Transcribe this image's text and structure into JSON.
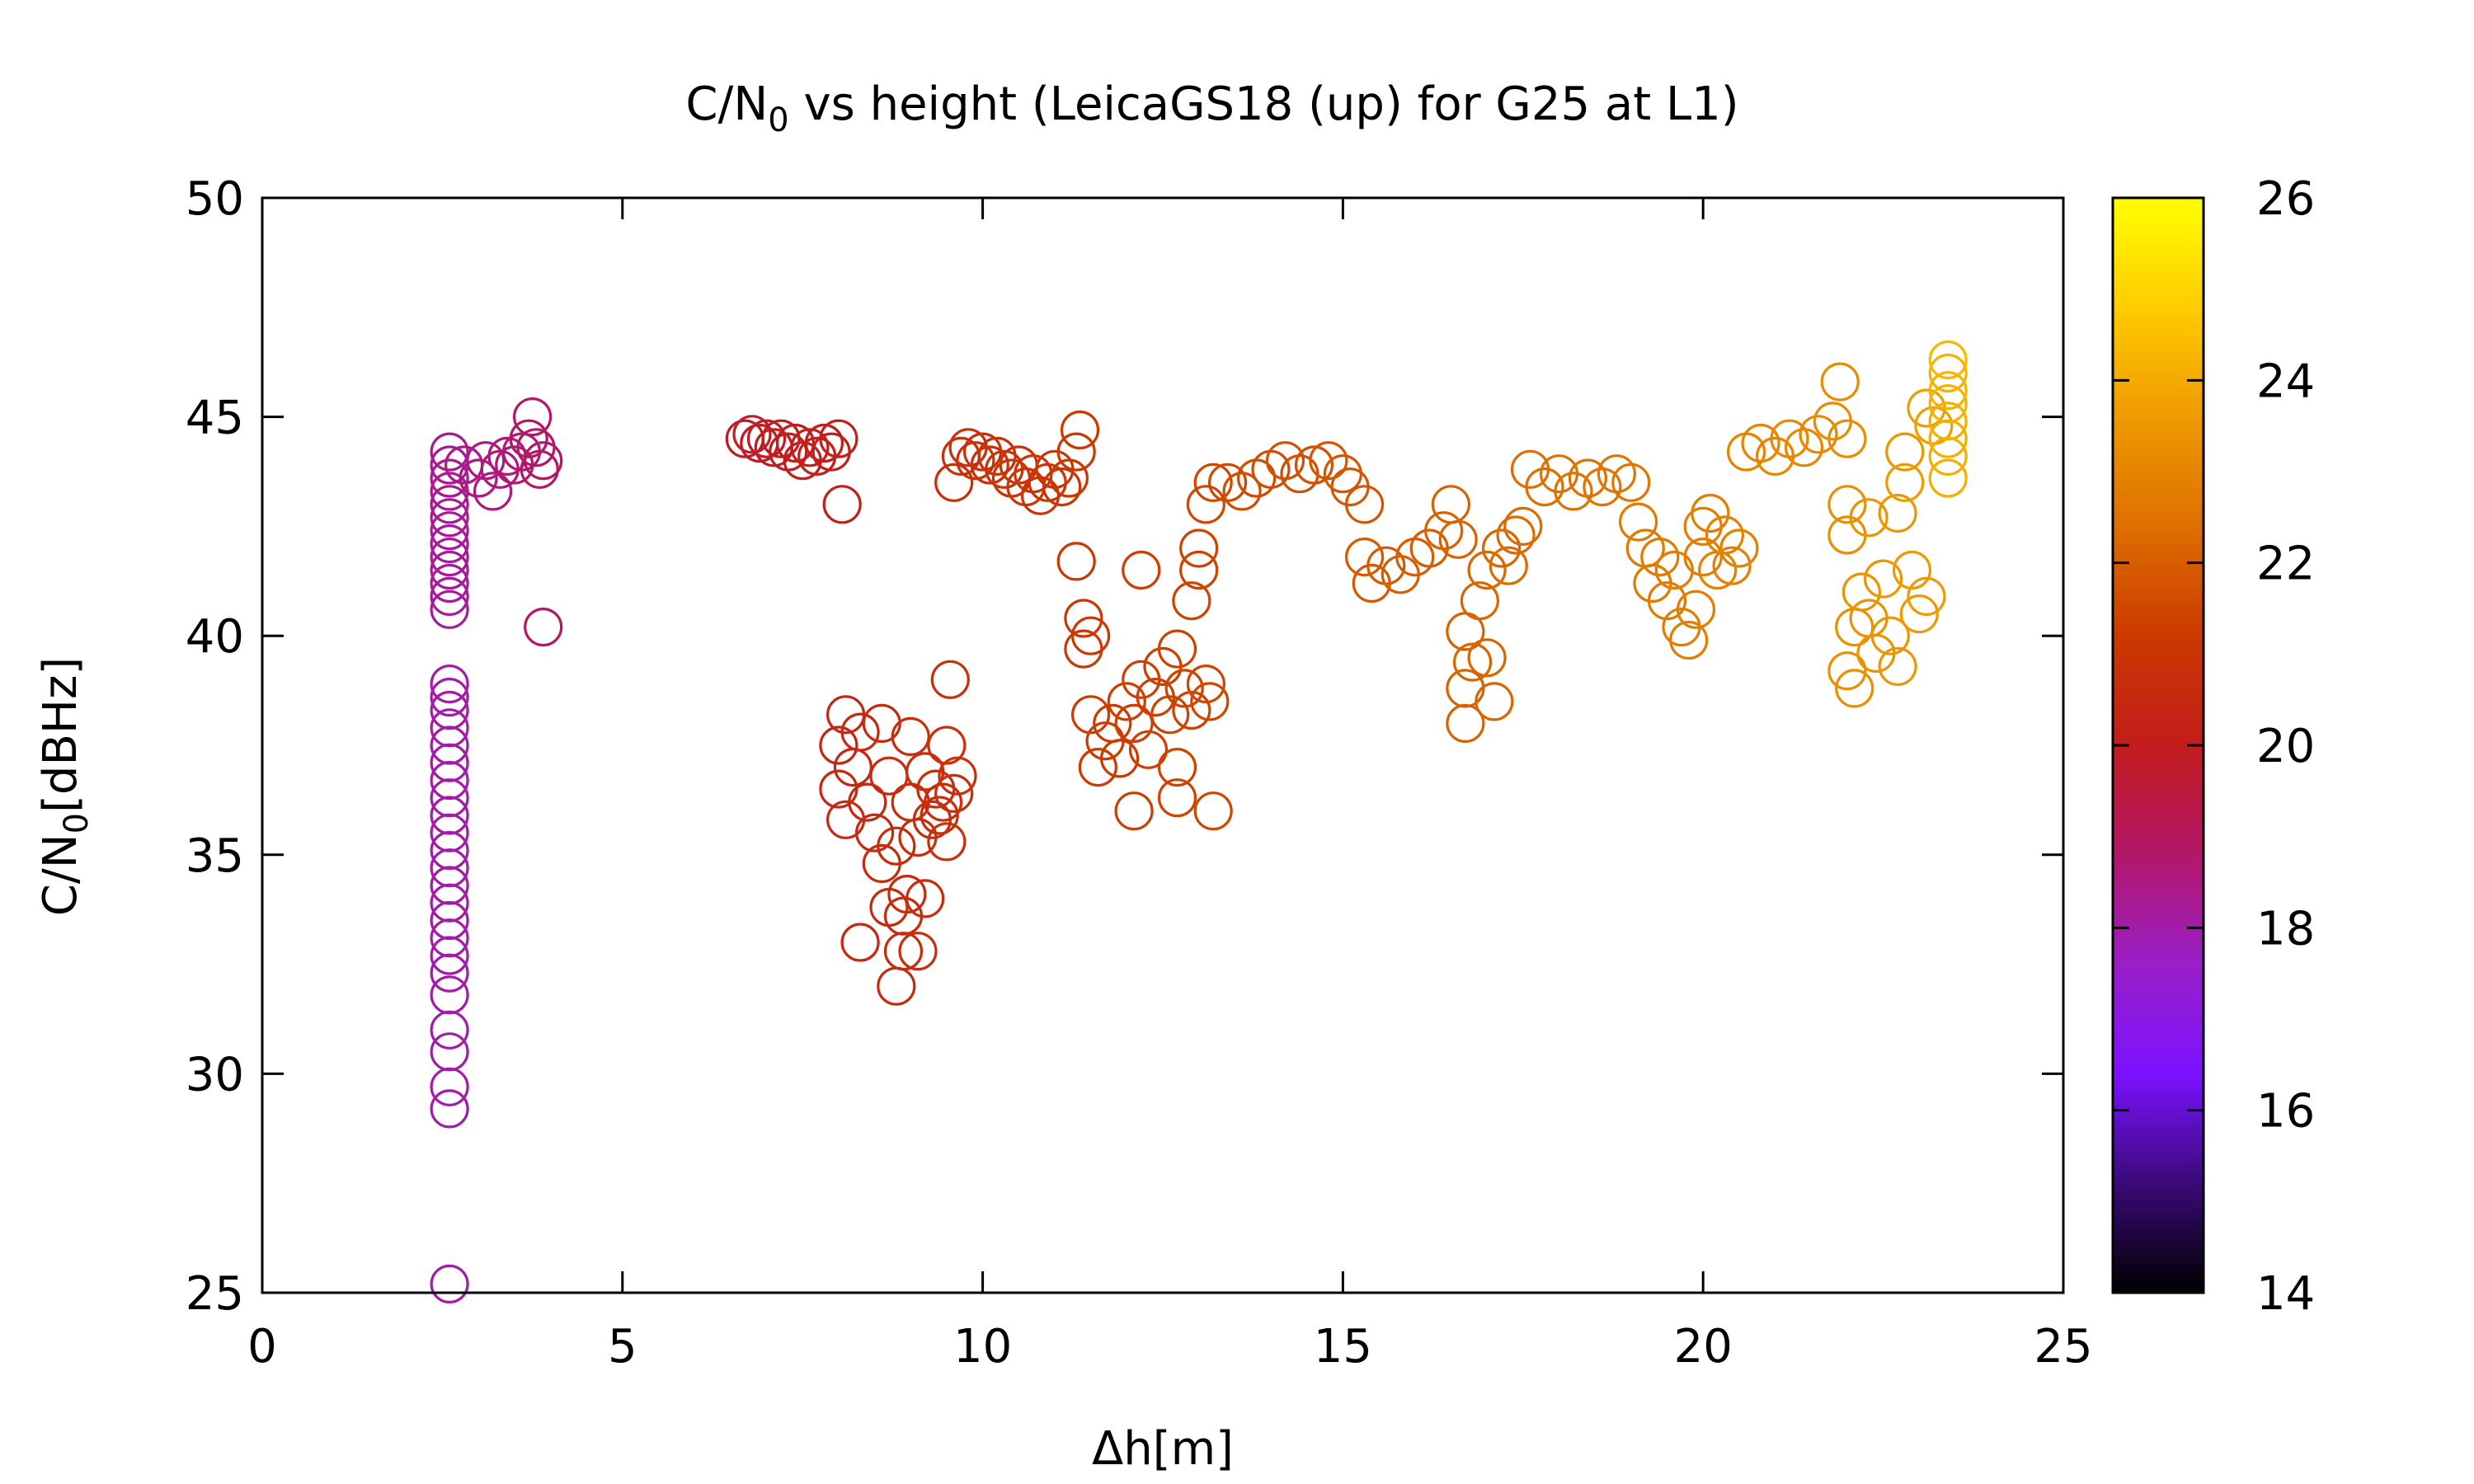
{
  "chart_data": {
    "type": "scatter",
    "title": "C/N₀ vs height (LeicaGS18 (up) for G25 at L1)",
    "title_parts": {
      "prefix": "C/N",
      "sub": "0",
      "suffix": " vs height (LeicaGS18 (up) for G25 at L1)"
    },
    "xlabel": "Δh[m]",
    "ylabel": "C/N₀[dBHz]",
    "ylabel_parts": {
      "prefix": "C/N",
      "sub": "0",
      "suffix": "[dBHz]"
    },
    "xlim": [
      0,
      25
    ],
    "ylim": [
      25,
      50
    ],
    "x_ticks": [
      0,
      5,
      10,
      15,
      20,
      25
    ],
    "y_ticks": [
      25,
      30,
      35,
      40,
      45,
      50
    ],
    "marker": "open-circle",
    "grid": false,
    "legend": "none",
    "colorbar": {
      "range": [
        14,
        26
      ],
      "ticks": [
        14,
        16,
        18,
        20,
        22,
        24,
        26
      ],
      "colormap": [
        "#000000",
        "#3a0a78",
        "#7b12ff",
        "#9a1fc8",
        "#b3176a",
        "#c21c1c",
        "#cc3a00",
        "#dd6f00",
        "#ee9a00",
        "#ffcc00",
        "#ffff00"
      ],
      "placement": "right"
    },
    "points": [
      [
        2.6,
        25.2,
        18
      ],
      [
        2.6,
        29.2,
        18
      ],
      [
        2.6,
        29.7,
        18
      ],
      [
        2.6,
        30.5,
        18
      ],
      [
        2.6,
        31.0,
        18
      ],
      [
        2.6,
        31.8,
        18
      ],
      [
        2.6,
        32.3,
        18
      ],
      [
        2.6,
        32.7,
        18
      ],
      [
        2.6,
        33.1,
        18
      ],
      [
        2.6,
        33.5,
        18
      ],
      [
        2.6,
        33.9,
        18
      ],
      [
        2.6,
        34.3,
        18
      ],
      [
        2.6,
        34.7,
        18
      ],
      [
        2.6,
        35.1,
        18
      ],
      [
        2.6,
        35.5,
        18
      ],
      [
        2.6,
        35.9,
        18
      ],
      [
        2.6,
        36.3,
        18
      ],
      [
        2.6,
        36.7,
        18
      ],
      [
        2.6,
        37.1,
        18
      ],
      [
        2.6,
        37.5,
        18
      ],
      [
        2.6,
        37.9,
        18
      ],
      [
        2.6,
        38.3,
        18
      ],
      [
        2.6,
        38.6,
        18
      ],
      [
        2.6,
        38.9,
        18
      ],
      [
        2.6,
        40.6,
        18.2
      ],
      [
        2.6,
        40.9,
        18.2
      ],
      [
        2.6,
        41.2,
        18.2
      ],
      [
        2.6,
        41.5,
        18.2
      ],
      [
        2.6,
        41.8,
        18.2
      ],
      [
        2.6,
        42.1,
        18.2
      ],
      [
        2.6,
        42.4,
        18.2
      ],
      [
        2.6,
        42.7,
        18.3
      ],
      [
        2.6,
        43.0,
        18.3
      ],
      [
        2.6,
        43.3,
        18.3
      ],
      [
        2.6,
        43.6,
        18.3
      ],
      [
        2.6,
        43.9,
        18.3
      ],
      [
        2.6,
        44.2,
        18.3
      ],
      [
        2.8,
        43.9,
        18.4
      ],
      [
        3.0,
        43.6,
        18.5
      ],
      [
        3.1,
        44.0,
        18.5
      ],
      [
        3.2,
        43.3,
        18.5
      ],
      [
        3.3,
        43.8,
        18.6
      ],
      [
        3.4,
        44.1,
        18.6
      ],
      [
        3.5,
        43.9,
        18.7
      ],
      [
        3.6,
        44.2,
        18.7
      ],
      [
        3.7,
        44.5,
        18.8
      ],
      [
        3.75,
        45.0,
        18.8
      ],
      [
        3.8,
        44.3,
        18.8
      ],
      [
        3.85,
        43.8,
        18.9
      ],
      [
        3.9,
        44.0,
        18.9
      ],
      [
        3.9,
        40.2,
        18.9
      ],
      [
        6.7,
        44.5,
        19.8
      ],
      [
        6.8,
        44.6,
        19.8
      ],
      [
        6.9,
        44.4,
        19.9
      ],
      [
        7.0,
        44.5,
        19.9
      ],
      [
        7.1,
        44.3,
        19.9
      ],
      [
        7.2,
        44.5,
        20
      ],
      [
        7.3,
        44.2,
        20
      ],
      [
        7.4,
        44.4,
        20
      ],
      [
        7.5,
        44.0,
        20
      ],
      [
        7.6,
        44.3,
        20.1
      ],
      [
        7.7,
        44.1,
        20.1
      ],
      [
        7.8,
        44.4,
        20.1
      ],
      [
        7.9,
        44.2,
        20.1
      ],
      [
        8.0,
        44.5,
        20.1
      ],
      [
        8.05,
        43.0,
        20.1
      ],
      [
        8.1,
        38.2,
        20.4
      ],
      [
        8.0,
        37.5,
        20.4
      ],
      [
        8.2,
        37.0,
        20.4
      ],
      [
        8.0,
        36.5,
        20.5
      ],
      [
        8.1,
        35.8,
        20.5
      ],
      [
        8.3,
        37.8,
        20.5
      ],
      [
        8.4,
        36.2,
        20.5
      ],
      [
        8.3,
        33.0,
        20.5
      ],
      [
        8.5,
        35.5,
        20.5
      ],
      [
        8.6,
        38.0,
        20.6
      ],
      [
        8.6,
        34.8,
        20.6
      ],
      [
        8.7,
        36.8,
        20.6
      ],
      [
        8.7,
        33.8,
        20.6
      ],
      [
        8.8,
        35.2,
        20.6
      ],
      [
        8.8,
        32.0,
        20.6
      ],
      [
        8.9,
        33.6,
        20.6
      ],
      [
        8.9,
        32.8,
        20.6
      ],
      [
        8.95,
        34.1,
        20.6
      ],
      [
        9.0,
        37.7,
        20.7
      ],
      [
        9.0,
        36.2,
        20.7
      ],
      [
        9.1,
        35.4,
        20.7
      ],
      [
        9.1,
        32.8,
        20.7
      ],
      [
        9.2,
        36.9,
        20.7
      ],
      [
        9.2,
        34.0,
        20.7
      ],
      [
        9.3,
        35.8,
        20.7
      ],
      [
        9.35,
        36.5,
        20.7
      ],
      [
        9.4,
        35.9,
        20.7
      ],
      [
        9.45,
        36.2,
        20.7
      ],
      [
        9.5,
        37.5,
        20.8
      ],
      [
        9.5,
        35.3,
        20.8
      ],
      [
        9.55,
        39.0,
        20.8
      ],
      [
        9.6,
        36.4,
        20.8
      ],
      [
        9.65,
        36.8,
        20.8
      ],
      [
        9.6,
        43.5,
        20.8
      ],
      [
        9.7,
        44.1,
        20.8
      ],
      [
        9.8,
        44.3,
        20.8
      ],
      [
        9.9,
        44.0,
        20.9
      ],
      [
        10.0,
        44.2,
        20.9
      ],
      [
        10.1,
        43.9,
        20.9
      ],
      [
        10.2,
        44.1,
        20.9
      ],
      [
        10.3,
        43.8,
        20.9
      ],
      [
        10.4,
        43.6,
        21
      ],
      [
        10.5,
        43.9,
        21
      ],
      [
        10.6,
        43.4,
        21
      ],
      [
        10.7,
        43.7,
        21
      ],
      [
        10.8,
        43.2,
        21
      ],
      [
        10.9,
        43.5,
        21
      ],
      [
        11.0,
        43.8,
        21
      ],
      [
        11.1,
        43.4,
        21
      ],
      [
        11.2,
        43.6,
        21.1
      ],
      [
        11.3,
        44.2,
        21.1
      ],
      [
        11.35,
        44.7,
        21.1
      ],
      [
        11.3,
        41.7,
        21.1
      ],
      [
        11.4,
        40.4,
        21.1
      ],
      [
        11.4,
        39.7,
        21.1
      ],
      [
        11.5,
        40.0,
        21.1
      ],
      [
        11.5,
        38.2,
        21.2
      ],
      [
        11.6,
        37.0,
        21.2
      ],
      [
        11.7,
        37.6,
        21.2
      ],
      [
        11.8,
        38.0,
        21.2
      ],
      [
        11.9,
        37.2,
        21.2
      ],
      [
        12.0,
        38.5,
        21.3
      ],
      [
        12.1,
        36.0,
        21.3
      ],
      [
        12.1,
        38.0,
        21.3
      ],
      [
        12.2,
        41.5,
        21.3
      ],
      [
        12.2,
        39.0,
        21.3
      ],
      [
        12.3,
        37.4,
        21.3
      ],
      [
        12.4,
        38.6,
        21.3
      ],
      [
        12.5,
        39.3,
        21.3
      ],
      [
        12.6,
        38.2,
        21.4
      ],
      [
        12.7,
        39.7,
        21.4
      ],
      [
        12.7,
        37.0,
        21.4
      ],
      [
        12.7,
        36.3,
        21.4
      ],
      [
        12.8,
        38.8,
        21.4
      ],
      [
        12.9,
        38.3,
        21.4
      ],
      [
        12.9,
        40.8,
        21.4
      ],
      [
        13.0,
        41.5,
        21.4
      ],
      [
        13.0,
        42.0,
        21.4
      ],
      [
        13.1,
        38.9,
        21.5
      ],
      [
        13.15,
        38.5,
        21.5
      ],
      [
        13.2,
        36.0,
        21.5
      ],
      [
        13.1,
        43.0,
        21.5
      ],
      [
        13.2,
        43.5,
        21.5
      ],
      [
        13.4,
        43.5,
        21.5
      ],
      [
        13.6,
        43.3,
        21.6
      ],
      [
        13.8,
        43.6,
        21.6
      ],
      [
        14.0,
        43.8,
        21.6
      ],
      [
        14.2,
        44.0,
        21.7
      ],
      [
        14.4,
        43.7,
        21.7
      ],
      [
        14.6,
        43.9,
        21.7
      ],
      [
        14.8,
        44.0,
        21.8
      ],
      [
        15.0,
        43.7,
        21.8
      ],
      [
        15.1,
        43.4,
        21.8
      ],
      [
        15.3,
        43.0,
        21.8
      ],
      [
        15.3,
        41.8,
        21.9
      ],
      [
        15.4,
        41.2,
        21.9
      ],
      [
        15.6,
        41.6,
        21.9
      ],
      [
        15.8,
        41.4,
        22
      ],
      [
        16.0,
        41.8,
        22
      ],
      [
        16.2,
        42.0,
        22
      ],
      [
        16.4,
        42.4,
        22.1
      ],
      [
        16.5,
        43.0,
        22.1
      ],
      [
        16.6,
        42.2,
        22.1
      ],
      [
        16.7,
        40.1,
        22.1
      ],
      [
        16.7,
        38.8,
        22.1
      ],
      [
        16.7,
        38.0,
        22.1
      ],
      [
        16.8,
        39.4,
        22.2
      ],
      [
        16.9,
        40.8,
        22.2
      ],
      [
        17.0,
        39.5,
        22.2
      ],
      [
        17.0,
        41.5,
        22.2
      ],
      [
        17.1,
        38.5,
        22.2
      ],
      [
        17.2,
        42.0,
        22.2
      ],
      [
        17.3,
        41.6,
        22.3
      ],
      [
        17.4,
        42.3,
        22.3
      ],
      [
        17.5,
        42.5,
        22.3
      ],
      [
        17.6,
        43.8,
        22.4
      ],
      [
        17.8,
        43.4,
        22.4
      ],
      [
        18.0,
        43.7,
        22.5
      ],
      [
        18.2,
        43.3,
        22.5
      ],
      [
        18.4,
        43.6,
        22.5
      ],
      [
        18.6,
        43.4,
        22.6
      ],
      [
        18.8,
        43.7,
        22.6
      ],
      [
        19.0,
        43.5,
        22.6
      ],
      [
        19.1,
        42.6,
        22.7
      ],
      [
        19.2,
        42.0,
        22.7
      ],
      [
        19.3,
        41.2,
        22.7
      ],
      [
        19.4,
        41.8,
        22.7
      ],
      [
        19.5,
        40.8,
        22.7
      ],
      [
        19.6,
        41.5,
        22.8
      ],
      [
        19.7,
        40.2,
        22.8
      ],
      [
        19.8,
        39.9,
        22.8
      ],
      [
        19.9,
        40.6,
        22.8
      ],
      [
        20.0,
        42.5,
        22.8
      ],
      [
        20.0,
        41.8,
        22.8
      ],
      [
        20.1,
        42.8,
        22.8
      ],
      [
        20.2,
        41.5,
        22.9
      ],
      [
        20.3,
        42.3,
        22.9
      ],
      [
        20.4,
        41.6,
        22.9
      ],
      [
        20.5,
        42.0,
        22.9
      ],
      [
        20.6,
        44.2,
        23
      ],
      [
        20.8,
        44.4,
        23
      ],
      [
        21.0,
        44.1,
        23
      ],
      [
        21.2,
        44.5,
        23.1
      ],
      [
        21.4,
        44.3,
        23.1
      ],
      [
        21.6,
        44.6,
        23.1
      ],
      [
        21.8,
        44.9,
        23.2
      ],
      [
        21.9,
        45.8,
        23.2
      ],
      [
        22.0,
        44.5,
        23.2
      ],
      [
        22.0,
        43.0,
        23.3
      ],
      [
        22.0,
        42.3,
        23.3
      ],
      [
        22.0,
        39.2,
        23.3
      ],
      [
        22.1,
        38.8,
        23.3
      ],
      [
        22.1,
        40.2,
        23.3
      ],
      [
        22.2,
        41.0,
        23.4
      ],
      [
        22.3,
        42.7,
        23.4
      ],
      [
        22.3,
        40.4,
        23.4
      ],
      [
        22.4,
        39.6,
        23.4
      ],
      [
        22.5,
        41.3,
        23.5
      ],
      [
        22.6,
        40.0,
        23.5
      ],
      [
        22.7,
        39.3,
        23.5
      ],
      [
        22.7,
        42.8,
        23.5
      ],
      [
        22.8,
        44.2,
        23.5
      ],
      [
        22.8,
        43.5,
        23.6
      ],
      [
        22.9,
        41.5,
        23.6
      ],
      [
        23.0,
        40.5,
        23.6
      ],
      [
        23.1,
        40.9,
        23.6
      ],
      [
        23.1,
        45.2,
        23.7
      ],
      [
        23.2,
        44.8,
        23.7
      ],
      [
        23.4,
        46.0,
        24.2
      ],
      [
        23.4,
        45.6,
        24.2
      ],
      [
        23.4,
        45.3,
        24.2
      ],
      [
        23.4,
        44.9,
        24.1
      ],
      [
        23.4,
        44.5,
        24.1
      ],
      [
        23.4,
        44.1,
        24.1
      ],
      [
        23.4,
        43.6,
        24.1
      ],
      [
        23.4,
        46.3,
        24.3
      ]
    ]
  }
}
